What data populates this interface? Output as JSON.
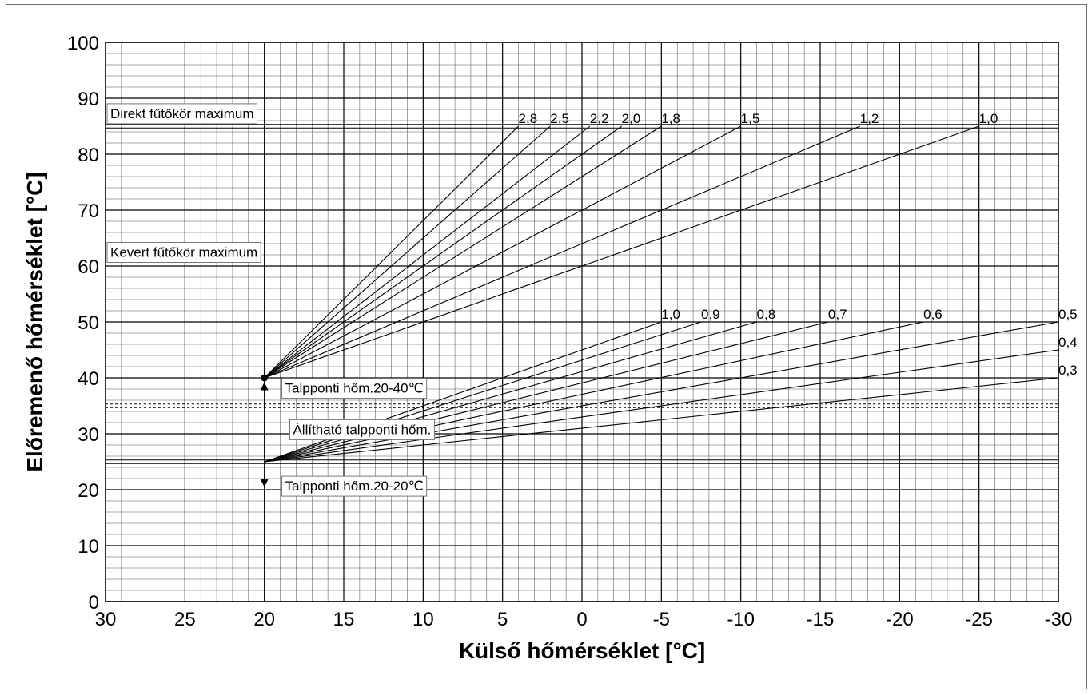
{
  "chart_data": {
    "type": "line",
    "xlabel": "Külső hőmérséklet [°C]",
    "ylabel": "Előremenő hőmérséklet [°C]",
    "xlim": [
      30,
      -30
    ],
    "ylim": [
      0,
      100
    ],
    "x_ticks": [
      "30",
      "25",
      "20",
      "15",
      "10",
      "5",
      "0",
      "-5",
      "-10",
      "-15",
      "-20",
      "-25",
      "-30"
    ],
    "y_ticks": [
      "0",
      "10",
      "20",
      "30",
      "40",
      "50",
      "60",
      "70",
      "80",
      "90",
      "100"
    ],
    "grid": true,
    "series_high": [
      {
        "name": "2,8",
        "x": [
          20,
          4
        ],
        "y": [
          40,
          85
        ]
      },
      {
        "name": "2,5",
        "x": [
          20,
          2
        ],
        "y": [
          40,
          85
        ]
      },
      {
        "name": "2,2",
        "x": [
          20,
          -0.5
        ],
        "y": [
          40,
          85
        ]
      },
      {
        "name": "2,0",
        "x": [
          20,
          -2.5
        ],
        "y": [
          40,
          85
        ]
      },
      {
        "name": "1,8",
        "x": [
          20,
          -5
        ],
        "y": [
          40,
          85
        ]
      },
      {
        "name": "1,5",
        "x": [
          20,
          -10
        ],
        "y": [
          40,
          85
        ]
      },
      {
        "name": "1,2",
        "x": [
          20,
          -17.5
        ],
        "y": [
          40,
          85
        ]
      },
      {
        "name": "1,0",
        "x": [
          20,
          -25
        ],
        "y": [
          40,
          85
        ]
      }
    ],
    "series_low": [
      {
        "name": "1,0",
        "x": [
          20,
          -5
        ],
        "y": [
          25,
          50
        ]
      },
      {
        "name": "0,9",
        "x": [
          20,
          -7.5
        ],
        "y": [
          25,
          50
        ]
      },
      {
        "name": "0,8",
        "x": [
          20,
          -11
        ],
        "y": [
          25,
          50
        ]
      },
      {
        "name": "0,7",
        "x": [
          20,
          -15.5
        ],
        "y": [
          25,
          50
        ]
      },
      {
        "name": "0,6",
        "x": [
          20,
          -21.5
        ],
        "y": [
          25,
          50
        ]
      },
      {
        "name": "0,5",
        "x": [
          20,
          -30
        ],
        "y": [
          25,
          50
        ]
      },
      {
        "name": "0,4",
        "x": [
          20,
          -30
        ],
        "y": [
          25,
          45
        ]
      },
      {
        "name": "0,3",
        "x": [
          20,
          -30
        ],
        "y": [
          25,
          40
        ]
      }
    ],
    "reference_lines": [
      {
        "y": 85,
        "style": "double-solid"
      },
      {
        "y": 62.5,
        "style": "none"
      },
      {
        "y": 35,
        "style": "double-dashed"
      },
      {
        "y": 25,
        "style": "double-solid"
      }
    ],
    "annotations": [
      {
        "text": "Direkt fűtőkör maximum",
        "x": 30,
        "y": 87.3
      },
      {
        "text": "Kevert fűtőkör maximum",
        "x": 30,
        "y": 62.5
      },
      {
        "text": "Talpponti hőm.20-40℃",
        "x": 19,
        "y": 38.2
      },
      {
        "text": "Állítható talpponti hőm.",
        "x": 18.5,
        "y": 30.8
      },
      {
        "text": "Talpponti hőm.20-20℃",
        "x": 19,
        "y": 20.7
      }
    ],
    "markers": [
      {
        "shape": "circle",
        "x": 20,
        "y": 40
      },
      {
        "shape": "triangle-up",
        "x": 20,
        "y": 38.5
      },
      {
        "shape": "triangle-down",
        "x": 20,
        "y": 21.2
      }
    ]
  }
}
